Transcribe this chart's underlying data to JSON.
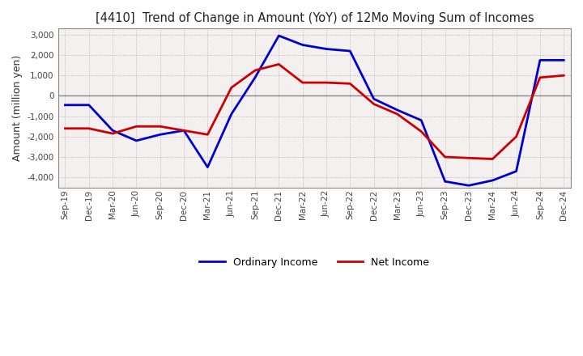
{
  "title": "[4410]  Trend of Change in Amount (YoY) of 12Mo Moving Sum of Incomes",
  "ylabel": "Amount (million yen)",
  "background_color": "#ffffff",
  "plot_bg_color": "#f5f0f0",
  "grid_color": "#aaaaaa",
  "x_labels": [
    "Sep-19",
    "Dec-19",
    "Mar-20",
    "Jun-20",
    "Sep-20",
    "Dec-20",
    "Mar-21",
    "Jun-21",
    "Sep-21",
    "Dec-21",
    "Mar-22",
    "Jun-22",
    "Sep-22",
    "Dec-22",
    "Mar-23",
    "Jun-23",
    "Sep-23",
    "Dec-23",
    "Mar-24",
    "Jun-24",
    "Sep-24",
    "Dec-24"
  ],
  "ordinary_income": [
    -450,
    -450,
    -1700,
    -2200,
    -1900,
    -1700,
    -3500,
    -900,
    900,
    2950,
    2500,
    2300,
    2200,
    -150,
    -700,
    -1200,
    -4200,
    -4400,
    -4150,
    -3700,
    1750,
    1750
  ],
  "net_income": [
    -1600,
    -1600,
    -1850,
    -1500,
    -1500,
    -1700,
    -1900,
    400,
    1250,
    1550,
    650,
    650,
    600,
    -400,
    -900,
    -1750,
    -3000,
    -3050,
    -3100,
    -2000,
    900,
    1000
  ],
  "ordinary_color": "#0000cc",
  "net_color": "#cc0000",
  "ylim": [
    -4500,
    3300
  ],
  "yticks": [
    -4000,
    -3000,
    -2000,
    -1000,
    0,
    1000,
    2000,
    3000
  ],
  "line_width": 2.0,
  "legend_labels": [
    "Ordinary Income",
    "Net Income"
  ]
}
